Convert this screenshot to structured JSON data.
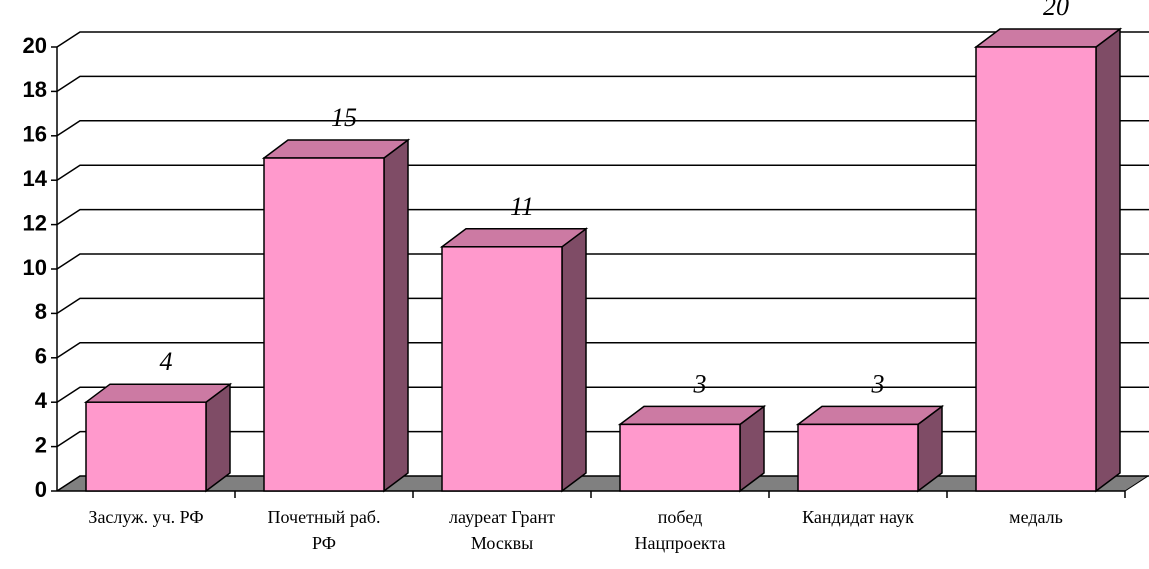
{
  "chart_data": {
    "type": "bar3d",
    "categories": [
      "Заслуж. уч. РФ",
      "Почетный раб.\nРФ",
      "лауреат Грант\nМосквы",
      "побед\nНацпроекта",
      "Кандидат наук",
      "медаль"
    ],
    "values": [
      4,
      15,
      11,
      3,
      3,
      20
    ],
    "color": "#ff99cc",
    "ylim": [
      0,
      20
    ],
    "yticks": [
      0,
      2,
      4,
      6,
      8,
      10,
      12,
      14,
      16,
      18,
      20
    ],
    "grid": true
  }
}
